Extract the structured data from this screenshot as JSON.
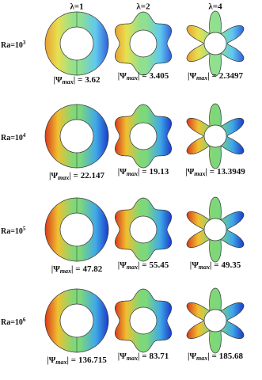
{
  "columns": [
    "λ=1",
    "λ=2",
    "λ=4"
  ],
  "psi_label": {
    "open": "|Ψ",
    "sub": "max",
    "close": "| ="
  },
  "rows": [
    {
      "ra_base": "Ra=10",
      "ra_exp": "3",
      "psi": [
        "3.62",
        "3.405",
        "2.3497"
      ]
    },
    {
      "ra_base": "Ra=10",
      "ra_exp": "4",
      "psi": [
        "22.147",
        "19.13",
        "13.3949"
      ]
    },
    {
      "ra_base": "Ra=10",
      "ra_exp": "5",
      "psi": [
        "47.82",
        "55.45",
        "49.35"
      ]
    },
    {
      "ra_base": "Ra=10",
      "ra_exp": "6",
      "psi": [
        "136.715",
        "83.71",
        "185.68"
      ]
    }
  ]
}
